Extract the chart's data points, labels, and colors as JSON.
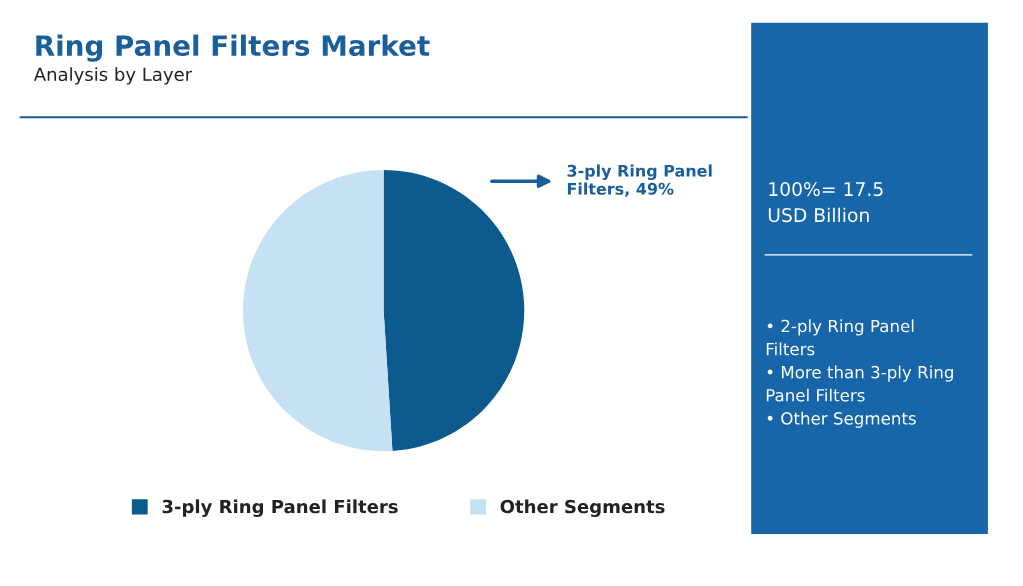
{
  "chart_data": {
    "type": "pie",
    "title": "Ring Panel Filters Market",
    "subtitle": "Analysis by Layer",
    "categories": [
      "3-ply Ring Panel Filters",
      "Other Segments"
    ],
    "values": [
      49,
      51
    ],
    "colors": [
      "#0d5a8e",
      "#c6e1f3"
    ],
    "value_labels": [
      "3-ply Ring Panel\nFilters, 49%",
      null
    ],
    "legend": "bottom",
    "annotations": [
      "100%= 17.5\nUSD Billion",
      "• 2-ply Ring Panel\nFilters\n• More than 3-ply Ring\nPanel Filters\n• Other Segments"
    ]
  }
}
